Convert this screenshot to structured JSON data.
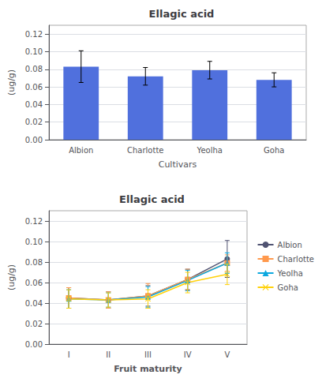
{
  "chart_data": [
    {
      "type": "bar",
      "title": "Ellagic acid",
      "categories": [
        "Albion",
        "Charlotte",
        "Yeolha",
        "Goha"
      ],
      "values": [
        0.083,
        0.072,
        0.079,
        0.068
      ],
      "errors": [
        0.018,
        0.01,
        0.01,
        0.008
      ],
      "x_label": "Cultivars",
      "y_label": "(ug/g)",
      "ylim": [
        0,
        0.13
      ],
      "yticks": [
        {
          "value": 0,
          "label": "0.00"
        },
        {
          "value": 0.02,
          "label": "0.02"
        },
        {
          "value": 0.04,
          "label": "0.04"
        },
        {
          "value": 0.06,
          "label": "0.06"
        },
        {
          "value": 0.08,
          "label": "0.08"
        },
        {
          "value": 0.1,
          "label": "0.10"
        },
        {
          "value": 0.12,
          "label": "0.12"
        }
      ],
      "grid": true
    },
    {
      "type": "line",
      "title": "Ellagic acid",
      "x": [
        1,
        2,
        3,
        4,
        5
      ],
      "xlim": [
        0.5,
        5.5
      ],
      "xticks": [
        {
          "value": 1,
          "label": "I"
        },
        {
          "value": 2,
          "label": "II"
        },
        {
          "value": 3,
          "label": "III"
        },
        {
          "value": 4,
          "label": "IV"
        },
        {
          "value": 5,
          "label": "V"
        }
      ],
      "x_label": "Fruit maturity",
      "y_label": "(ug/g)",
      "ylim": [
        0,
        0.13
      ],
      "yticks": [
        {
          "value": 0,
          "label": "0.00"
        },
        {
          "value": 0.02,
          "label": "0.02"
        },
        {
          "value": 0.04,
          "label": "0.04"
        },
        {
          "value": 0.06,
          "label": "0.06"
        },
        {
          "value": 0.08,
          "label": "0.08"
        },
        {
          "value": 0.1,
          "label": "0.10"
        },
        {
          "value": 0.12,
          "label": "0.12"
        }
      ],
      "grid": true,
      "legend": "right",
      "series": [
        {
          "name": "Albion",
          "marker": "circle",
          "line_style": "solid",
          "values": [
            0.045,
            0.043,
            0.047,
            0.063,
            0.083
          ],
          "errors": [
            0.01,
            0.008,
            0.01,
            0.01,
            0.018
          ]
        },
        {
          "name": "Charlotte",
          "marker": "square",
          "line_style": "solid",
          "values": [
            0.045,
            0.043,
            0.047,
            0.063,
            0.079
          ],
          "errors": [
            0.01,
            0.008,
            0.012,
            0.01,
            0.008
          ]
        },
        {
          "name": "Yeolha",
          "marker": "triangle",
          "line_style": "solid",
          "values": [
            0.044,
            0.043,
            0.046,
            0.062,
            0.079
          ],
          "errors": [
            0.009,
            0.007,
            0.01,
            0.01,
            0.01
          ]
        },
        {
          "name": "Goha",
          "marker": "x",
          "line_style": "solid",
          "values": [
            0.044,
            0.043,
            0.044,
            0.06,
            0.068
          ],
          "errors": [
            0.009,
            0.007,
            0.009,
            0.01,
            0.01
          ]
        }
      ]
    }
  ]
}
